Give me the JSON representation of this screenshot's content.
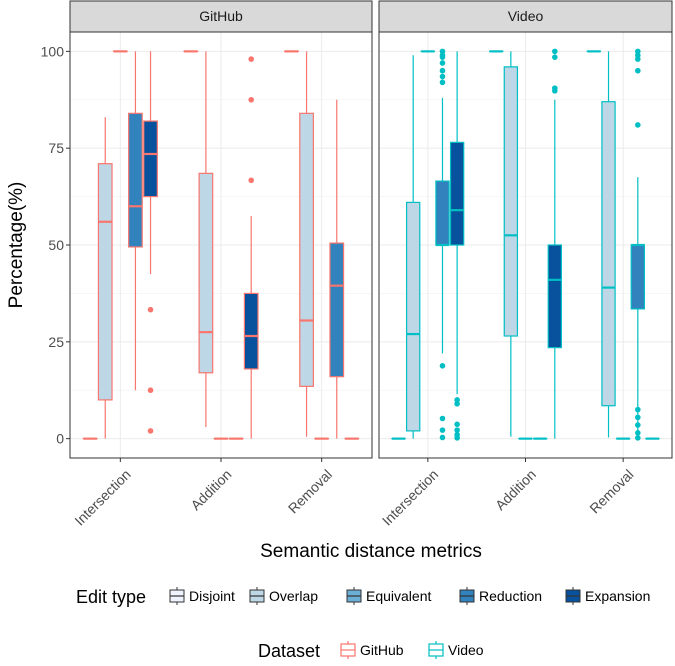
{
  "chart_data": {
    "type": "box",
    "ylabel": "Percentage(%)",
    "xlabel": "Semantic distance metrics",
    "ylim": [
      -5,
      105
    ],
    "yticks": [
      0,
      25,
      50,
      75,
      100
    ],
    "categories": [
      "Intersection",
      "Addition",
      "Removal"
    ],
    "panels": [
      {
        "name": "GitHub",
        "color": "#f8766d",
        "groups": [
          {
            "category": "Intersection",
            "boxes": [
              {
                "edit_type": "Disjoint",
                "min": 0,
                "q1": 0,
                "median": 0,
                "q3": 0,
                "max": 0,
                "outliers": []
              },
              {
                "edit_type": "Overlap",
                "min": 0,
                "q1": 10,
                "median": 56,
                "q3": 71,
                "max": 83,
                "outliers": []
              },
              {
                "edit_type": "Equivalent",
                "min": 100,
                "q1": 100,
                "median": 100,
                "q3": 100,
                "max": 100,
                "outliers": []
              },
              {
                "edit_type": "Reduction",
                "min": 12.5,
                "q1": 49.5,
                "median": 60,
                "q3": 84,
                "max": 100,
                "outliers": []
              },
              {
                "edit_type": "Expansion",
                "min": 42.5,
                "q1": 62.5,
                "median": 73.5,
                "q3": 82,
                "max": 100,
                "outliers": [
                  33.3,
                  12.5,
                  2
                ]
              }
            ]
          },
          {
            "category": "Addition",
            "boxes": [
              {
                "edit_type": "Disjoint",
                "min": 100,
                "q1": 100,
                "median": 100,
                "q3": 100,
                "max": 100,
                "outliers": []
              },
              {
                "edit_type": "Overlap",
                "min": 3,
                "q1": 17,
                "median": 27.5,
                "q3": 68.5,
                "max": 100,
                "outliers": []
              },
              {
                "edit_type": "Equivalent",
                "min": 0,
                "q1": 0,
                "median": 0,
                "q3": 0,
                "max": 0,
                "outliers": []
              },
              {
                "edit_type": "Reduction",
                "min": 0,
                "q1": 0,
                "median": 0,
                "q3": 0,
                "max": 0,
                "outliers": []
              },
              {
                "edit_type": "Expansion",
                "min": 0,
                "q1": 18,
                "median": 26.5,
                "q3": 37.5,
                "max": 57.5,
                "outliers": [
                  98,
                  87.5,
                  66.7
                ]
              }
            ]
          },
          {
            "category": "Removal",
            "boxes": [
              {
                "edit_type": "Disjoint",
                "min": 100,
                "q1": 100,
                "median": 100,
                "q3": 100,
                "max": 100,
                "outliers": []
              },
              {
                "edit_type": "Overlap",
                "min": 0.5,
                "q1": 13.5,
                "median": 30.5,
                "q3": 84,
                "max": 100,
                "outliers": []
              },
              {
                "edit_type": "Equivalent",
                "min": 0,
                "q1": 0,
                "median": 0,
                "q3": 0,
                "max": 0,
                "outliers": []
              },
              {
                "edit_type": "Reduction",
                "min": 0,
                "q1": 16,
                "median": 39.5,
                "q3": 50.5,
                "max": 87.5,
                "outliers": []
              },
              {
                "edit_type": "Expansion",
                "min": 0,
                "q1": 0,
                "median": 0,
                "q3": 0,
                "max": 0,
                "outliers": []
              }
            ]
          }
        ]
      },
      {
        "name": "Video",
        "color": "#00bfc4",
        "groups": [
          {
            "category": "Intersection",
            "boxes": [
              {
                "edit_type": "Disjoint",
                "min": 0,
                "q1": 0,
                "median": 0,
                "q3": 0,
                "max": 0,
                "outliers": []
              },
              {
                "edit_type": "Overlap",
                "min": 0,
                "q1": 2,
                "median": 27,
                "q3": 61,
                "max": 99,
                "outliers": []
              },
              {
                "edit_type": "Equivalent",
                "min": 100,
                "q1": 100,
                "median": 100,
                "q3": 100,
                "max": 100,
                "outliers": []
              },
              {
                "edit_type": "Reduction",
                "min": 22,
                "q1": 50,
                "median": 50,
                "q3": 66.5,
                "max": 88,
                "outliers": [
                  100,
                  99,
                  98.5,
                  97,
                  95,
                  93.5,
                  92,
                  18.8,
                  5.2,
                  2.2,
                  0.3
                ]
              },
              {
                "edit_type": "Expansion",
                "min": 11.5,
                "q1": 50,
                "median": 59,
                "q3": 76.5,
                "max": 100,
                "outliers": [
                  10,
                  9,
                  3.7,
                  2.2,
                  1,
                  0.2
                ]
              }
            ]
          },
          {
            "category": "Addition",
            "boxes": [
              {
                "edit_type": "Disjoint",
                "min": 100,
                "q1": 100,
                "median": 100,
                "q3": 100,
                "max": 100,
                "outliers": []
              },
              {
                "edit_type": "Overlap",
                "min": 0.5,
                "q1": 26.5,
                "median": 52.5,
                "q3": 96,
                "max": 100,
                "outliers": []
              },
              {
                "edit_type": "Equivalent",
                "min": 0,
                "q1": 0,
                "median": 0,
                "q3": 0,
                "max": 0,
                "outliers": []
              },
              {
                "edit_type": "Reduction",
                "min": 0,
                "q1": 0,
                "median": 0,
                "q3": 0,
                "max": 0,
                "outliers": []
              },
              {
                "edit_type": "Expansion",
                "min": 0,
                "q1": 23.5,
                "median": 41,
                "q3": 50,
                "max": 87.5,
                "outliers": [
                  100,
                  98.5,
                  90.5,
                  89.8
                ]
              }
            ]
          },
          {
            "category": "Removal",
            "boxes": [
              {
                "edit_type": "Disjoint",
                "min": 100,
                "q1": 100,
                "median": 100,
                "q3": 100,
                "max": 100,
                "outliers": []
              },
              {
                "edit_type": "Overlap",
                "min": 0.3,
                "q1": 8.5,
                "median": 39,
                "q3": 87,
                "max": 100,
                "outliers": []
              },
              {
                "edit_type": "Equivalent",
                "min": 0,
                "q1": 0,
                "median": 0,
                "q3": 0,
                "max": 0,
                "outliers": []
              },
              {
                "edit_type": "Reduction",
                "min": 0,
                "q1": 33.5,
                "median": 50,
                "q3": 50,
                "max": 67.5,
                "outliers": [
                  100,
                  99,
                  98,
                  95,
                  81,
                  7.5,
                  5.5,
                  3.5,
                  1.5,
                  0.2
                ]
              },
              {
                "edit_type": "Expansion",
                "min": 0,
                "q1": 0,
                "median": 0,
                "q3": 0,
                "max": 0,
                "outliers": []
              }
            ]
          }
        ]
      }
    ],
    "legends": [
      {
        "title": "Edit type",
        "items": [
          {
            "label": "Disjoint",
            "fill": "#eff3ff"
          },
          {
            "label": "Overlap",
            "fill": "#bdd7e7"
          },
          {
            "label": "Equivalent",
            "fill": "#6baed6"
          },
          {
            "label": "Reduction",
            "fill": "#3182bd"
          },
          {
            "label": "Expansion",
            "fill": "#08519c"
          }
        ]
      },
      {
        "title": "Dataset",
        "items": [
          {
            "label": "GitHub",
            "stroke": "#f8766d"
          },
          {
            "label": "Video",
            "stroke": "#00bfc4"
          }
        ]
      }
    ],
    "panel_background": "#ffffff",
    "strip_background": "#d9d9d9",
    "grid": true,
    "legend_position": "bottom"
  }
}
